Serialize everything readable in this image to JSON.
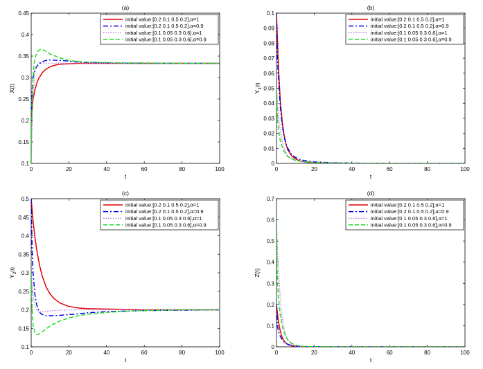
{
  "chart_data": [
    {
      "type": "line",
      "title": "(a)",
      "xlabel": "t",
      "ylabel": "X(t)",
      "ylabel_sub": "",
      "xlim": [
        0,
        100
      ],
      "ylim": [
        0.1,
        0.45
      ],
      "xticks": [
        0,
        20,
        40,
        60,
        80,
        100
      ],
      "yticks": [
        0.1,
        0.15,
        0.2,
        0.25,
        0.3,
        0.35,
        0.4,
        0.45
      ],
      "grid": false,
      "legend_position": "top-right",
      "series": [
        {
          "name": "initial value:[0.2 0.1 0.5 0.2],α=1",
          "color": "#e00000",
          "dash": "solid",
          "x": [
            0,
            1,
            2,
            3,
            4,
            6,
            8,
            10,
            12,
            15,
            20,
            25,
            30,
            40,
            60,
            80,
            100
          ],
          "y": [
            0.2,
            0.25,
            0.272,
            0.287,
            0.298,
            0.312,
            0.32,
            0.325,
            0.328,
            0.331,
            0.332,
            0.333,
            0.333,
            0.333,
            0.333,
            0.333,
            0.333
          ]
        },
        {
          "name": "initial value:[0.2 0.1 0.5 0.2],α=0.9",
          "color": "#0000ee",
          "dash": "dashdot",
          "x": [
            0,
            0.5,
            1,
            2,
            3,
            4,
            6,
            8,
            10,
            15,
            20,
            25,
            30,
            40,
            60,
            80,
            100
          ],
          "y": [
            0.2,
            0.27,
            0.3,
            0.318,
            0.326,
            0.331,
            0.337,
            0.34,
            0.341,
            0.34,
            0.338,
            0.336,
            0.335,
            0.334,
            0.333,
            0.333,
            0.333
          ]
        },
        {
          "name": "initial value:[0.1 0.05 0.3 0.6],α=1",
          "color": "#c080e0",
          "dash": "dotted",
          "x": [
            0,
            0.5,
            1,
            2,
            3,
            4,
            6,
            8,
            10,
            15,
            20,
            30,
            40,
            60,
            80,
            100
          ],
          "y": [
            0.1,
            0.2,
            0.26,
            0.31,
            0.33,
            0.335,
            0.334,
            0.333,
            0.333,
            0.333,
            0.333,
            0.333,
            0.333,
            0.333,
            0.333,
            0.333
          ]
        },
        {
          "name": "initial value:[0.1 0.05 0.3 0.6],α=0.9",
          "color": "#22dd22",
          "dash": "dashed",
          "x": [
            0,
            0.5,
            1,
            1.5,
            2,
            3,
            4,
            5,
            6,
            8,
            10,
            15,
            20,
            25,
            30,
            40,
            50,
            60,
            80,
            100
          ],
          "y": [
            0.1,
            0.25,
            0.3,
            0.33,
            0.345,
            0.357,
            0.363,
            0.366,
            0.365,
            0.361,
            0.355,
            0.346,
            0.34,
            0.337,
            0.336,
            0.335,
            0.334,
            0.334,
            0.333,
            0.333
          ]
        }
      ]
    },
    {
      "type": "line",
      "title": "(b)",
      "xlabel": "t",
      "ylabel": "Y",
      "ylabel_sub": "1",
      "ylabel_tail": "(t)",
      "xlim": [
        0,
        100
      ],
      "ylim": [
        0,
        0.1
      ],
      "xticks": [
        0,
        20,
        40,
        60,
        80,
        100
      ],
      "yticks": [
        0,
        0.01,
        0.02,
        0.03,
        0.04,
        0.05,
        0.06,
        0.07,
        0.08,
        0.09,
        0.1
      ],
      "grid": false,
      "legend_position": "top-right",
      "series": [
        {
          "name": "initial value:[0.2 0.1 0.5 0.2],α=1",
          "color": "#e00000",
          "dash": "solid",
          "x": [
            0,
            1,
            2,
            3,
            4,
            5,
            6,
            8,
            10,
            12,
            15,
            20,
            30,
            40,
            60,
            80,
            100
          ],
          "y": [
            0.1,
            0.065,
            0.042,
            0.028,
            0.019,
            0.013,
            0.009,
            0.005,
            0.003,
            0.0018,
            0.001,
            0.0005,
            0.0002,
            0.0001,
            0,
            0,
            0
          ]
        },
        {
          "name": "initial value:[0.2 0.1 0.5 0.2],α=0.9",
          "color": "#0000ee",
          "dash": "dashdot",
          "x": [
            0,
            0.5,
            1,
            2,
            3,
            4,
            5,
            6,
            8,
            10,
            12,
            15,
            20,
            30,
            40,
            60,
            80,
            100
          ],
          "y": [
            0.1,
            0.07,
            0.058,
            0.038,
            0.026,
            0.018,
            0.013,
            0.01,
            0.006,
            0.004,
            0.0028,
            0.0018,
            0.001,
            0.0004,
            0.0002,
            0,
            0,
            0
          ]
        },
        {
          "name": "initial value:[0.1 0.05 0.3 0.6],α=1",
          "color": "#c080e0",
          "dash": "dotted",
          "x": [
            0,
            1,
            2,
            3,
            4,
            5,
            6,
            8,
            10,
            15,
            20,
            30,
            40,
            60,
            80,
            100
          ],
          "y": [
            0.05,
            0.033,
            0.022,
            0.015,
            0.01,
            0.007,
            0.005,
            0.003,
            0.002,
            0.0008,
            0.0004,
            0.0001,
            0,
            0,
            0,
            0
          ]
        },
        {
          "name": "initial value:[0.1 0.05 0.3 0.6],α=0.9",
          "color": "#22dd22",
          "dash": "dashed",
          "x": [
            0,
            0.5,
            1,
            2,
            3,
            4,
            5,
            6,
            8,
            10,
            15,
            20,
            30,
            40,
            60,
            80,
            100
          ],
          "y": [
            0.05,
            0.03,
            0.023,
            0.015,
            0.011,
            0.008,
            0.006,
            0.0045,
            0.003,
            0.002,
            0.001,
            0.0006,
            0.0002,
            0.0001,
            0,
            0,
            0
          ]
        }
      ]
    },
    {
      "type": "line",
      "title": "(c)",
      "xlabel": "t",
      "ylabel": "Y",
      "ylabel_sub": "2",
      "ylabel_tail": "(t)",
      "xlim": [
        0,
        100
      ],
      "ylim": [
        0.1,
        0.5
      ],
      "xticks": [
        0,
        20,
        40,
        60,
        80,
        100
      ],
      "yticks": [
        0.1,
        0.15,
        0.2,
        0.25,
        0.3,
        0.35,
        0.4,
        0.45,
        0.5
      ],
      "grid": false,
      "legend_position": "top-right",
      "series": [
        {
          "name": "initial value:[0.2 0.1 0.5 0.2],α=1",
          "color": "#e00000",
          "dash": "solid",
          "x": [
            0,
            1,
            2,
            3,
            4,
            5,
            6,
            8,
            10,
            12,
            15,
            20,
            25,
            30,
            40,
            60,
            80,
            100
          ],
          "y": [
            0.5,
            0.44,
            0.395,
            0.36,
            0.332,
            0.308,
            0.289,
            0.261,
            0.243,
            0.231,
            0.219,
            0.209,
            0.205,
            0.203,
            0.202,
            0.2,
            0.2,
            0.2
          ]
        },
        {
          "name": "initial value:[0.2 0.1 0.5 0.2],α=0.9",
          "color": "#0000ee",
          "dash": "dashdot",
          "x": [
            0,
            0.5,
            1,
            2,
            3,
            4,
            5,
            6,
            8,
            10,
            12,
            15,
            20,
            25,
            30,
            40,
            60,
            80,
            100
          ],
          "y": [
            0.5,
            0.36,
            0.3,
            0.24,
            0.212,
            0.198,
            0.19,
            0.187,
            0.184,
            0.184,
            0.184,
            0.185,
            0.187,
            0.189,
            0.192,
            0.195,
            0.198,
            0.199,
            0.2
          ]
        },
        {
          "name": "initial value:[0.1 0.05 0.3 0.6],α=1",
          "color": "#c080e0",
          "dash": "dotted",
          "x": [
            0,
            1,
            2,
            3,
            4,
            5,
            6,
            8,
            10,
            12,
            15,
            20,
            30,
            40,
            60,
            80,
            100
          ],
          "y": [
            0.3,
            0.24,
            0.21,
            0.2,
            0.196,
            0.195,
            0.195,
            0.196,
            0.197,
            0.198,
            0.199,
            0.2,
            0.2,
            0.2,
            0.2,
            0.2,
            0.2
          ]
        },
        {
          "name": "initial value:[0.1 0.05 0.3 0.6],α=0.9",
          "color": "#22dd22",
          "dash": "dashed",
          "x": [
            0,
            0.5,
            1,
            2,
            3,
            4,
            5,
            6,
            8,
            10,
            12,
            15,
            20,
            25,
            30,
            40,
            50,
            60,
            80,
            100
          ],
          "y": [
            0.3,
            0.2,
            0.16,
            0.138,
            0.133,
            0.134,
            0.137,
            0.141,
            0.149,
            0.156,
            0.162,
            0.169,
            0.178,
            0.184,
            0.188,
            0.193,
            0.196,
            0.198,
            0.2,
            0.2
          ]
        }
      ]
    },
    {
      "type": "line",
      "title": "(d)",
      "xlabel": "t",
      "ylabel": "Z(t)",
      "ylabel_sub": "",
      "xlim": [
        0,
        100
      ],
      "ylim": [
        0,
        0.7
      ],
      "xticks": [
        0,
        20,
        40,
        60,
        80,
        100
      ],
      "yticks": [
        0,
        0.1,
        0.2,
        0.3,
        0.4,
        0.5,
        0.6,
        0.7
      ],
      "grid": false,
      "legend_position": "top-right",
      "series": [
        {
          "name": "initial value:[0.2 0.1 0.5 0.2],α=1",
          "color": "#e00000",
          "dash": "solid",
          "x": [
            0,
            1,
            2,
            3,
            4,
            5,
            6,
            8,
            10,
            12,
            15,
            20,
            30,
            40,
            60,
            80,
            100
          ],
          "y": [
            0.2,
            0.12,
            0.075,
            0.046,
            0.028,
            0.018,
            0.011,
            0.005,
            0.002,
            0.001,
            0.0005,
            0.0002,
            0,
            0,
            0,
            0,
            0
          ]
        },
        {
          "name": "initial value:[0.2 0.1 0.5 0.2],α=0.9",
          "color": "#0000ee",
          "dash": "dashdot",
          "x": [
            0,
            0.5,
            1,
            2,
            3,
            4,
            5,
            6,
            8,
            10,
            12,
            15,
            20,
            30,
            40,
            60,
            80,
            100
          ],
          "y": [
            0.2,
            0.1,
            0.075,
            0.05,
            0.034,
            0.024,
            0.017,
            0.012,
            0.006,
            0.003,
            0.002,
            0.001,
            0.0004,
            0.0001,
            0,
            0,
            0,
            0
          ]
        },
        {
          "name": "initial value:[0.1 0.05 0.3 0.6],α=1",
          "color": "#c080e0",
          "dash": "dotted",
          "x": [
            0,
            0.5,
            1,
            2,
            3,
            4,
            5,
            6,
            8,
            10,
            12,
            15,
            20,
            30,
            40,
            60,
            80,
            100
          ],
          "y": [
            0.6,
            0.45,
            0.37,
            0.23,
            0.14,
            0.086,
            0.052,
            0.032,
            0.012,
            0.005,
            0.002,
            0.0008,
            0.0002,
            0,
            0,
            0,
            0,
            0
          ]
        },
        {
          "name": "initial value:[0.1 0.05 0.3 0.6],α=0.9",
          "color": "#22dd22",
          "dash": "dashed",
          "x": [
            0,
            0.3,
            0.6,
            1,
            2,
            3,
            4,
            5,
            6,
            8,
            10,
            12,
            15,
            20,
            30,
            40,
            60,
            80,
            100
          ],
          "y": [
            0.6,
            0.38,
            0.3,
            0.24,
            0.15,
            0.1,
            0.068,
            0.047,
            0.033,
            0.017,
            0.009,
            0.005,
            0.0025,
            0.001,
            0.0002,
            0,
            0,
            0,
            0
          ]
        }
      ]
    }
  ]
}
